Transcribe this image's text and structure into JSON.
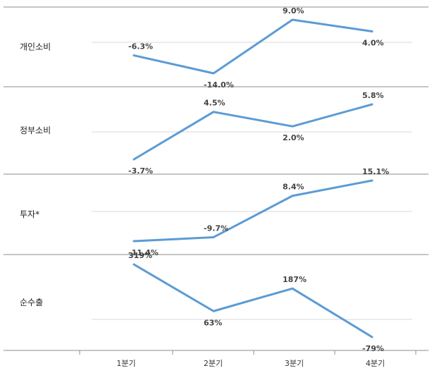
{
  "colors": {
    "line": "#5b9bd5",
    "grid": "#d9d9d9",
    "separator": "#8c8c8c"
  },
  "chart_data": {
    "type": "line",
    "categories": [
      "1분기",
      "2분기",
      "3분기",
      "4분기"
    ],
    "grid": true,
    "panels": [
      {
        "label": "개인소비",
        "values": [
          -6.3,
          -14.0,
          9.0,
          4.0
        ],
        "data_labels": [
          "-6.3%",
          "-14.0%",
          "9.0%",
          "4.0%"
        ],
        "ylim": [
          -20,
          10
        ]
      },
      {
        "label": "정부소비",
        "values": [
          -3.7,
          4.5,
          2.0,
          5.8
        ],
        "data_labels": [
          "-3.7%",
          "4.5%",
          "2.0%",
          "5.8%"
        ],
        "ylim": [
          -10,
          10
        ]
      },
      {
        "label": "투자*",
        "values": [
          -11.4,
          -9.7,
          8.4,
          15.1
        ],
        "data_labels": [
          "-11.4%",
          "-9.7%",
          "8.4%",
          "15.1%"
        ],
        "ylim": [
          -20,
          20
        ]
      },
      {
        "label": "순수출",
        "values": [
          319,
          63,
          187,
          -79
        ],
        "data_labels": [
          "319%",
          "63%",
          "187%",
          "-79%"
        ],
        "ylim": [
          -100,
          400
        ]
      }
    ]
  }
}
